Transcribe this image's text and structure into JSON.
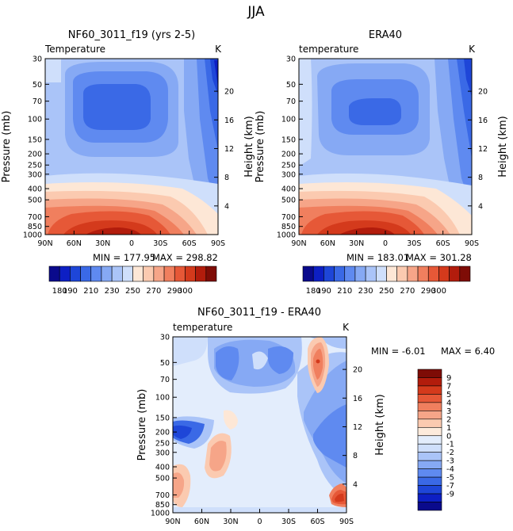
{
  "figure_title": "JJA",
  "colors": {
    "temp_levels": [
      "#0a0a8c",
      "#0d1fc4",
      "#1e46d8",
      "#3a69e6",
      "#5f8af0",
      "#86a9f4",
      "#aac4f8",
      "#cfdffb",
      "#fde7d6",
      "#fbcab0",
      "#f6a588",
      "#f07f5e",
      "#e65837",
      "#d43a1c",
      "#b21c0c",
      "#7e0c06"
    ],
    "diff_levels": [
      "#0a0a8c",
      "#0d1fc4",
      "#1e46d8",
      "#3a69e6",
      "#5f8af0",
      "#86a9f4",
      "#aac4f8",
      "#cfdffb",
      "#e3edfc",
      "#fdebdc",
      "#fbcab0",
      "#f6a588",
      "#f07f5e",
      "#e65837",
      "#d43a1c",
      "#b21c0c",
      "#7e0c06"
    ]
  },
  "chart_data": [
    {
      "type": "heatmap",
      "id": "model",
      "title": "NF60_3011_f19 (yrs 2-5)",
      "left_label": "Temperature",
      "unit_label": "K",
      "ylabel": "Pressure (mb)",
      "y2label": "Height (km)",
      "xticks": [
        "90N",
        "60N",
        "30N",
        "0",
        "30S",
        "60S",
        "90S"
      ],
      "yticks": [
        "30",
        "50",
        "70",
        "100",
        "150",
        "200",
        "250",
        "300",
        "400",
        "500",
        "700",
        "850",
        "1000"
      ],
      "height_ticks": [
        "20",
        "16",
        "12",
        "8",
        "4"
      ],
      "min_label": "MIN = 177.95",
      "max_label": "MAX = 298.82",
      "colorbar_ticks": [
        "180",
        "190",
        "210",
        "230",
        "250",
        "270",
        "290",
        "300"
      ]
    },
    {
      "type": "heatmap",
      "id": "obs",
      "title": "ERA40",
      "left_label": "temperature",
      "unit_label": "K",
      "ylabel": "Pressure (mb)",
      "y2label": "Height (km)",
      "xticks": [
        "90N",
        "60N",
        "30N",
        "0",
        "30S",
        "60S",
        "90S"
      ],
      "yticks": [
        "30",
        "50",
        "70",
        "100",
        "150",
        "200",
        "250",
        "300",
        "400",
        "500",
        "700",
        "850",
        "1000"
      ],
      "height_ticks": [
        "20",
        "16",
        "12",
        "8",
        "4"
      ],
      "min_label": "MIN = 183.01",
      "max_label": "MAX = 301.28",
      "colorbar_ticks": [
        "180",
        "190",
        "210",
        "230",
        "250",
        "270",
        "290",
        "300"
      ]
    },
    {
      "type": "heatmap",
      "id": "diff",
      "title": "NF60_3011_f19 - ERA40",
      "left_label": "temperature",
      "unit_label": "K",
      "ylabel": "Pressure (mb)",
      "y2label": "Height (km)",
      "xticks": [
        "90N",
        "60N",
        "30N",
        "0",
        "30S",
        "60S",
        "90S"
      ],
      "yticks": [
        "30",
        "50",
        "70",
        "100",
        "150",
        "200",
        "250",
        "300",
        "400",
        "500",
        "700",
        "850",
        "1000"
      ],
      "height_ticks": [
        "20",
        "16",
        "12",
        "8",
        "4"
      ],
      "min_label": "MIN =   -6.01",
      "max_label": "MAX =    6.40",
      "colorbar_ticks": [
        "9",
        "7",
        "5",
        "4",
        "3",
        "2",
        "1",
        "0",
        "-1",
        "-2",
        "-3",
        "-4",
        "-5",
        "-7",
        "-9"
      ]
    }
  ]
}
